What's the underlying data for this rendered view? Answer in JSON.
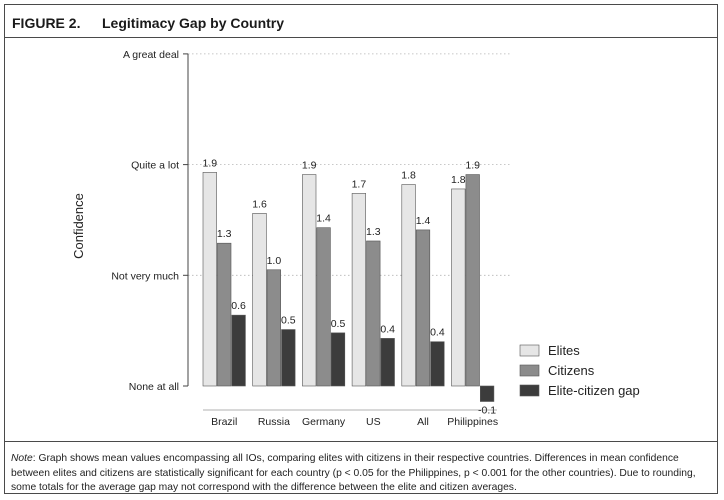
{
  "header": {
    "figure_number": "FIGURE 2.",
    "title": "Legitimacy Gap by Country"
  },
  "note": {
    "lead": "Note",
    "text": ": Graph shows mean values encompassing all IOs, comparing elites with citizens in their respective countries. Differences in mean confidence between elites and citizens are statistically significant for each country (p < 0.05 for the Philippines, p < 0.001 for the other countries). Due to rounding, some totals for the average gap may not correspond with the difference between the elite and citizen averages."
  },
  "chart_data": {
    "type": "bar",
    "title": "Legitimacy Gap by Country",
    "ylabel": "Confidence",
    "xlabel": "",
    "ylim": [
      0,
      3
    ],
    "yticks": [
      {
        "value": 0,
        "label": "None at all"
      },
      {
        "value": 1,
        "label": "Not very much"
      },
      {
        "value": 2,
        "label": "Quite a lot"
      },
      {
        "value": 3,
        "label": "A great deal"
      }
    ],
    "grid": "dotted horizontal at ticks",
    "legend_position": "bottom-right",
    "categories": [
      "Brazil",
      "Russia",
      "Germany",
      "US",
      "All",
      "Philippines"
    ],
    "series": [
      {
        "name": "Elites",
        "color": "#e6e6e6",
        "values": [
          1.93,
          1.56,
          1.91,
          1.74,
          1.82,
          1.78
        ],
        "labels": [
          "1.9",
          "1.6",
          "1.9",
          "1.7",
          "1.8",
          "1.8"
        ]
      },
      {
        "name": "Citizens",
        "color": "#8c8c8c",
        "values": [
          1.29,
          1.05,
          1.43,
          1.31,
          1.41,
          1.91
        ],
        "labels": [
          "1.3",
          "1.0",
          "1.4",
          "1.3",
          "1.4",
          "1.9"
        ]
      },
      {
        "name": "Elite-citizen gap",
        "color": "#3c3c3c",
        "values": [
          0.64,
          0.51,
          0.48,
          0.43,
          0.4,
          -0.14
        ],
        "labels": [
          "0.6",
          "0.5",
          "0.5",
          "0.4",
          "0.4",
          "-0.1"
        ]
      }
    ]
  }
}
